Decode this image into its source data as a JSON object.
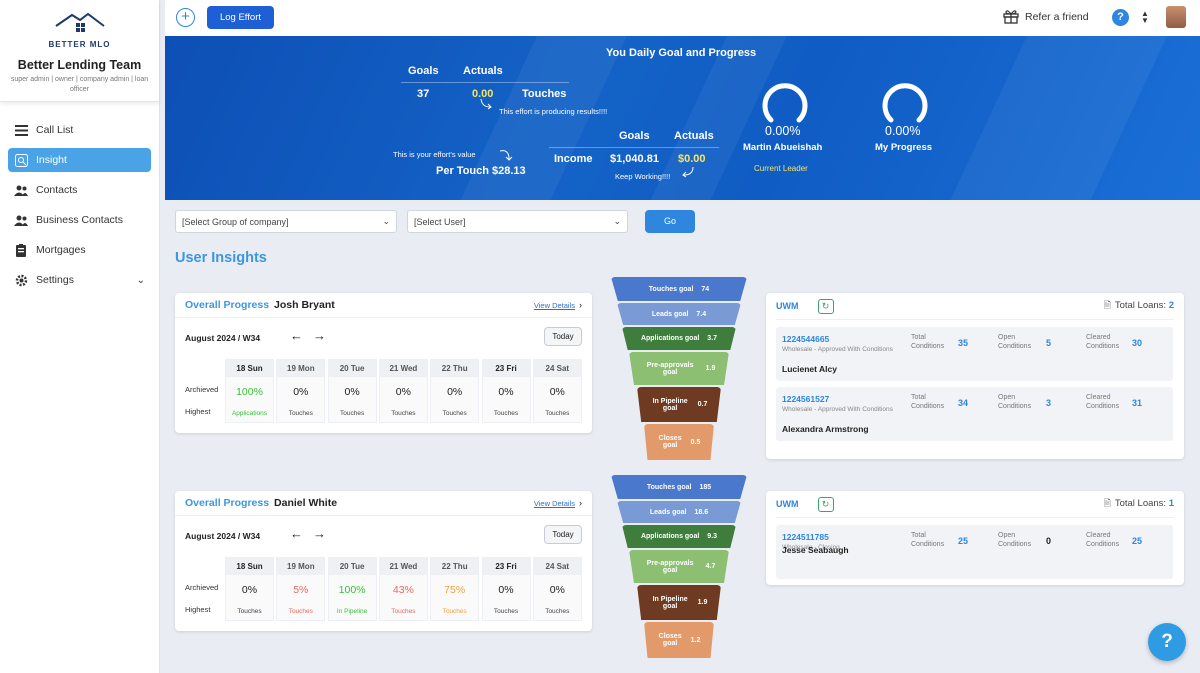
{
  "sidebar": {
    "logo_text": "BETTER MLO",
    "team_name": "Better Lending Team",
    "roles": "super admin | owner | company admin | loan officer",
    "items": [
      {
        "label": "Call List",
        "icon": "list-icon"
      },
      {
        "label": "Insight",
        "icon": "insight-icon",
        "active": true
      },
      {
        "label": "Contacts",
        "icon": "contacts-icon"
      },
      {
        "label": "Business Contacts",
        "icon": "business-contacts-icon"
      },
      {
        "label": "Mortgages",
        "icon": "mortgages-icon"
      },
      {
        "label": "Settings",
        "icon": "gear-icon"
      }
    ]
  },
  "topbar": {
    "log_effort": "Log Effort",
    "refer": "Refer a friend",
    "help": "?"
  },
  "banner": {
    "title": "You Daily Goal and Progress",
    "goals_label": "Goals",
    "actuals_label": "Actuals",
    "touches_goal": "37",
    "touches_actual": "0.00",
    "touches_label": "Touches",
    "touches_note": "This effort is producing results!!!!",
    "effort_value_label": "This is your effort's value",
    "per_touch": "Per Touch $28.13",
    "income_goals_label": "Goals",
    "income_actuals_label": "Actuals",
    "income_label": "Income",
    "income_goal": "$1,040.81",
    "income_actual": "$0.00",
    "income_note": "Keep Working!!!!",
    "leader_pct": "0.00%",
    "leader_name": "Martin Abueishah",
    "leader_caption": "Current Leader",
    "my_pct": "0.00%",
    "my_label": "My Progress"
  },
  "filters": {
    "group_placeholder": "[Select Group of company]",
    "user_placeholder": "[Select User]",
    "go": "Go"
  },
  "section_title": "User Insights",
  "insights": [
    {
      "overall": "Overall Progress",
      "user": "Josh Bryant",
      "view_details": "View Details",
      "week": "August 2024 / W34",
      "today": "Today",
      "row_achieved": "Archieved",
      "row_highest": "Highest",
      "days": [
        {
          "name": "18 Sun",
          "value": "100%",
          "label": "Applications",
          "color": "#36c236"
        },
        {
          "name": "19 Mon",
          "value": "0%",
          "label": "Touches",
          "color": "#222222"
        },
        {
          "name": "20 Tue",
          "value": "0%",
          "label": "Touches",
          "color": "#222222"
        },
        {
          "name": "21 Wed",
          "value": "0%",
          "label": "Touches",
          "color": "#222222"
        },
        {
          "name": "22 Thu",
          "value": "0%",
          "label": "Touches",
          "color": "#222222"
        },
        {
          "name": "23 Fri",
          "value": "0%",
          "label": "Touches",
          "color": "#222222"
        },
        {
          "name": "24 Sat",
          "value": "0%",
          "label": "Touches",
          "color": "#222222"
        }
      ],
      "funnel": [
        {
          "label": "Touches goal",
          "value": "74"
        },
        {
          "label": "Leads goal",
          "value": "7.4"
        },
        {
          "label": "Applications goal",
          "value": "3.7"
        },
        {
          "label": "Pre-approvals goal",
          "value": "1.9"
        },
        {
          "label": "In Pipeline goal",
          "value": "0.7"
        },
        {
          "label": "Closes goal",
          "value": "0.5"
        }
      ],
      "uwm": {
        "label": "UWM",
        "total_loans_label": "Total Loans:",
        "total_loans": "2",
        "loans": [
          {
            "number": "1224544665",
            "status": "Wholesale - Approved With Conditions",
            "name": "Lucienet Alcy",
            "total": "35",
            "open": "5",
            "cleared": "30"
          },
          {
            "number": "1224561527",
            "status": "Wholesale - Approved With Conditions",
            "name": "Alexandra Armstrong",
            "total": "34",
            "open": "3",
            "cleared": "31"
          }
        ]
      }
    },
    {
      "overall": "Overall Progress",
      "user": "Daniel White",
      "view_details": "View Details",
      "week": "August 2024 / W34",
      "today": "Today",
      "row_achieved": "Archieved",
      "row_highest": "Highest",
      "days": [
        {
          "name": "18 Sun",
          "value": "0%",
          "label": "Touches",
          "color": "#222222"
        },
        {
          "name": "19 Mon",
          "value": "5%",
          "label": "Touches",
          "color": "#e8675f"
        },
        {
          "name": "20 Tue",
          "value": "100%",
          "label": "In Pipeline",
          "color": "#36c236"
        },
        {
          "name": "21 Wed",
          "value": "43%",
          "label": "Touches",
          "color": "#e8675f"
        },
        {
          "name": "22 Thu",
          "value": "75%",
          "label": "Touches",
          "color": "#f0a042"
        },
        {
          "name": "23 Fri",
          "value": "0%",
          "label": "Touches",
          "color": "#222222"
        },
        {
          "name": "24 Sat",
          "value": "0%",
          "label": "Touches",
          "color": "#222222"
        }
      ],
      "funnel": [
        {
          "label": "Touches goal",
          "value": "185"
        },
        {
          "label": "Leads goal",
          "value": "18.6"
        },
        {
          "label": "Applications goal",
          "value": "9.3"
        },
        {
          "label": "Pre-approvals goal",
          "value": "4.7"
        },
        {
          "label": "In Pipeline goal",
          "value": "1.9"
        },
        {
          "label": "Closes goal",
          "value": "1.2"
        }
      ],
      "uwm": {
        "label": "UWM",
        "total_loans_label": "Total Loans:",
        "total_loans": "1",
        "loans": [
          {
            "number": "1224511785",
            "status": "Wholesale - Closing",
            "name": "Jesse Seabaugh",
            "total": "25",
            "open": "0",
            "cleared": "25"
          }
        ]
      }
    }
  ],
  "condition_labels": {
    "total": "Total Conditions",
    "open": "Open Conditions",
    "cleared": "Cleared Conditions"
  },
  "colors": {
    "accent": "#2e86de",
    "banner": "#1463c7",
    "actual_yellow": "#f5e663"
  }
}
